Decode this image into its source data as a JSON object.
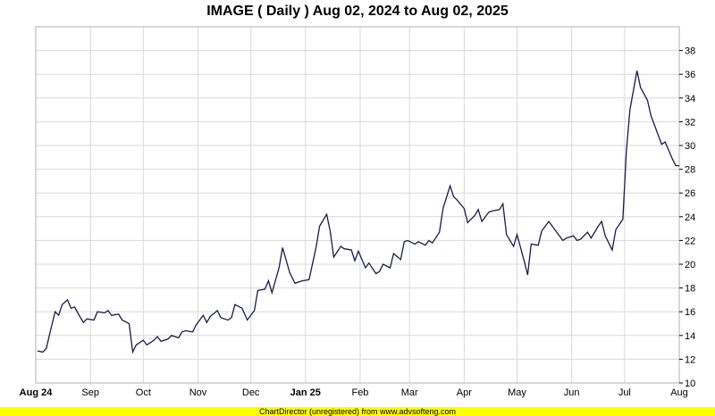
{
  "footer": {
    "text": "ChartDirector (unregistered) from www.advsofteng.com"
  },
  "colors": {
    "line": "#1a1a4d",
    "grid": "#d9d9d9",
    "footer": "#ffff00"
  },
  "chart_data": {
    "type": "line",
    "title": "IMAGE ( Daily ) Aug 02, 2024 to Aug 02, 2025",
    "xlabel": "",
    "ylabel": "",
    "ylim": [
      10,
      40
    ],
    "y_ticks": [
      10,
      12,
      14,
      16,
      18,
      20,
      22,
      24,
      26,
      28,
      30,
      32,
      34,
      36,
      38
    ],
    "grid": true,
    "y_axis_side": "right",
    "x_ticks": [
      {
        "label": "Aug 24",
        "date": "2024-08-01",
        "bold": true
      },
      {
        "label": "Sep",
        "date": "2024-09-01",
        "bold": false
      },
      {
        "label": "Oct",
        "date": "2024-10-01",
        "bold": false
      },
      {
        "label": "Nov",
        "date": "2024-11-01",
        "bold": false
      },
      {
        "label": "Dec",
        "date": "2024-12-01",
        "bold": false
      },
      {
        "label": "Jan 25",
        "date": "2025-01-01",
        "bold": true
      },
      {
        "label": "Feb",
        "date": "2025-02-01",
        "bold": false
      },
      {
        "label": "Mar",
        "date": "2025-03-01",
        "bold": false
      },
      {
        "label": "Apr",
        "date": "2025-04-01",
        "bold": false
      },
      {
        "label": "May",
        "date": "2025-05-01",
        "bold": false
      },
      {
        "label": "Jun",
        "date": "2025-06-01",
        "bold": false
      },
      {
        "label": "Jul",
        "date": "2025-07-01",
        "bold": false
      },
      {
        "label": "Aug",
        "date": "2025-08-01",
        "bold": false
      }
    ],
    "xlim": [
      "2024-08-01",
      "2025-08-01"
    ],
    "series": [
      {
        "x": [
          "2024-08-02",
          "2024-08-05",
          "2024-08-07",
          "2024-08-09",
          "2024-08-12",
          "2024-08-14",
          "2024-08-16",
          "2024-08-19",
          "2024-08-21",
          "2024-08-23",
          "2024-08-26",
          "2024-08-28",
          "2024-08-30",
          "2024-09-03",
          "2024-09-05",
          "2024-09-09",
          "2024-09-11",
          "2024-09-13",
          "2024-09-17",
          "2024-09-19",
          "2024-09-23",
          "2024-09-25",
          "2024-09-27",
          "2024-10-01",
          "2024-10-03",
          "2024-10-07",
          "2024-10-09",
          "2024-10-11",
          "2024-10-15",
          "2024-10-17",
          "2024-10-21",
          "2024-10-23",
          "2024-10-25",
          "2024-10-29",
          "2024-10-31",
          "2024-11-04",
          "2024-11-06",
          "2024-11-08",
          "2024-11-12",
          "2024-11-14",
          "2024-11-18",
          "2024-11-20",
          "2024-11-22",
          "2024-11-26",
          "2024-11-29",
          "2024-12-03",
          "2024-12-05",
          "2024-12-09",
          "2024-12-11",
          "2024-12-13",
          "2024-12-17",
          "2024-12-19",
          "2024-12-23",
          "2024-12-26",
          "2024-12-30",
          "2025-01-03",
          "2025-01-07",
          "2025-01-09",
          "2025-01-13",
          "2025-01-15",
          "2025-01-17",
          "2025-01-21",
          "2025-01-23",
          "2025-01-27",
          "2025-01-29",
          "2025-01-31",
          "2025-02-04",
          "2025-02-06",
          "2025-02-10",
          "2025-02-12",
          "2025-02-14",
          "2025-02-18",
          "2025-02-20",
          "2025-02-24",
          "2025-02-26",
          "2025-02-28",
          "2025-03-04",
          "2025-03-06",
          "2025-03-10",
          "2025-03-12",
          "2025-03-14",
          "2025-03-18",
          "2025-03-20",
          "2025-03-24",
          "2025-03-26",
          "2025-03-28",
          "2025-04-01",
          "2025-04-03",
          "2025-04-07",
          "2025-04-09",
          "2025-04-11",
          "2025-04-15",
          "2025-04-17",
          "2025-04-21",
          "2025-04-23",
          "2025-04-25",
          "2025-04-29",
          "2025-05-01",
          "2025-05-05",
          "2025-05-07",
          "2025-05-09",
          "2025-05-13",
          "2025-05-15",
          "2025-05-19",
          "2025-05-21",
          "2025-05-23",
          "2025-05-27",
          "2025-05-29",
          "2025-06-02",
          "2025-06-04",
          "2025-06-06",
          "2025-06-10",
          "2025-06-12",
          "2025-06-16",
          "2025-06-18",
          "2025-06-20",
          "2025-06-24",
          "2025-06-26",
          "2025-06-30",
          "2025-07-02",
          "2025-07-04",
          "2025-07-08",
          "2025-07-10",
          "2025-07-14",
          "2025-07-16",
          "2025-07-18",
          "2025-07-22",
          "2025-07-24",
          "2025-07-28",
          "2025-07-30",
          "2025-08-01"
        ],
        "values": [
          12.7,
          12.6,
          12.9,
          14.2,
          16.0,
          15.7,
          16.6,
          17.0,
          16.3,
          16.4,
          15.6,
          15.1,
          15.4,
          15.3,
          16.0,
          15.9,
          16.1,
          15.7,
          15.8,
          15.3,
          15.0,
          12.6,
          13.2,
          13.6,
          13.2,
          13.6,
          13.9,
          13.5,
          13.7,
          14.0,
          13.8,
          14.3,
          14.4,
          14.3,
          14.9,
          15.7,
          15.1,
          15.6,
          16.1,
          15.5,
          15.3,
          15.5,
          16.6,
          16.3,
          15.3,
          16.1,
          17.8,
          17.9,
          18.6,
          17.6,
          19.7,
          21.4,
          19.3,
          18.4,
          18.6,
          18.7,
          21.4,
          23.2,
          24.2,
          22.8,
          20.6,
          21.5,
          21.3,
          21.2,
          20.3,
          21.1,
          19.7,
          20.1,
          19.2,
          19.4,
          20.0,
          19.7,
          20.9,
          20.4,
          21.9,
          22.0,
          21.7,
          21.9,
          21.6,
          22.0,
          21.8,
          22.7,
          24.7,
          26.6,
          25.7,
          25.4,
          24.7,
          23.5,
          24.1,
          24.6,
          23.6,
          24.4,
          24.5,
          24.6,
          25.1,
          22.5,
          21.5,
          22.5,
          20.3,
          19.1,
          21.7,
          21.6,
          22.8,
          23.6,
          23.2,
          22.8,
          22.0,
          22.2,
          22.4,
          22.0,
          22.1,
          22.7,
          22.2,
          23.2,
          23.6,
          22.4,
          21.2,
          22.9,
          23.8,
          29.5,
          33.0,
          36.3,
          34.9,
          33.8,
          32.5,
          31.7,
          30.1,
          30.3,
          28.9,
          28.3,
          28.3
        ],
        "color": "#1a1a4d"
      }
    ]
  }
}
